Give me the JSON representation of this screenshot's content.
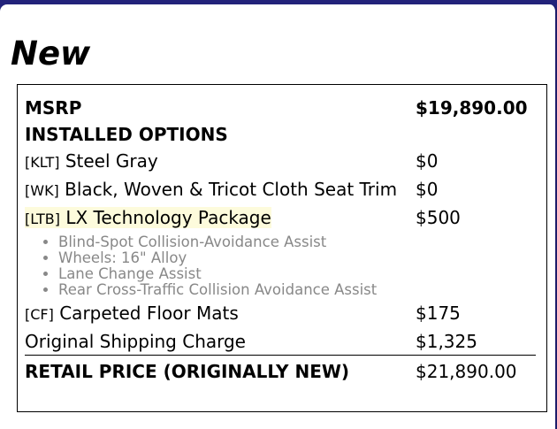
{
  "title": "New",
  "msrp": {
    "label": "MSRP",
    "value": "$19,890.00"
  },
  "installed_options_heading": "INSTALLED OPTIONS",
  "options": [
    {
      "code": "[KLT]",
      "name": "Steel Gray",
      "price": "$0"
    },
    {
      "code": "[WK]",
      "name": "Black, Woven & Tricot Cloth Seat Trim",
      "price": "$0"
    },
    {
      "code": "[LTB]",
      "name": "LX Technology Package",
      "price": "$500",
      "features": [
        "Blind-Spot Collision-Avoidance Assist",
        "Wheels: 16\" Alloy",
        "Lane Change Assist",
        "Rear Cross-Traffic Collision Avoidance Assist"
      ]
    },
    {
      "code": "[CF]",
      "name": "Carpeted Floor Mats",
      "price": "$175"
    }
  ],
  "shipping": {
    "label": "Original Shipping Charge",
    "value": "$1,325"
  },
  "total": {
    "label": "RETAIL PRICE (ORIGINALLY NEW)",
    "value": "$21,890.00"
  },
  "colors": {
    "header_bar": "#22227a",
    "highlight": "#fdfbdc",
    "feature_text": "#888888"
  }
}
